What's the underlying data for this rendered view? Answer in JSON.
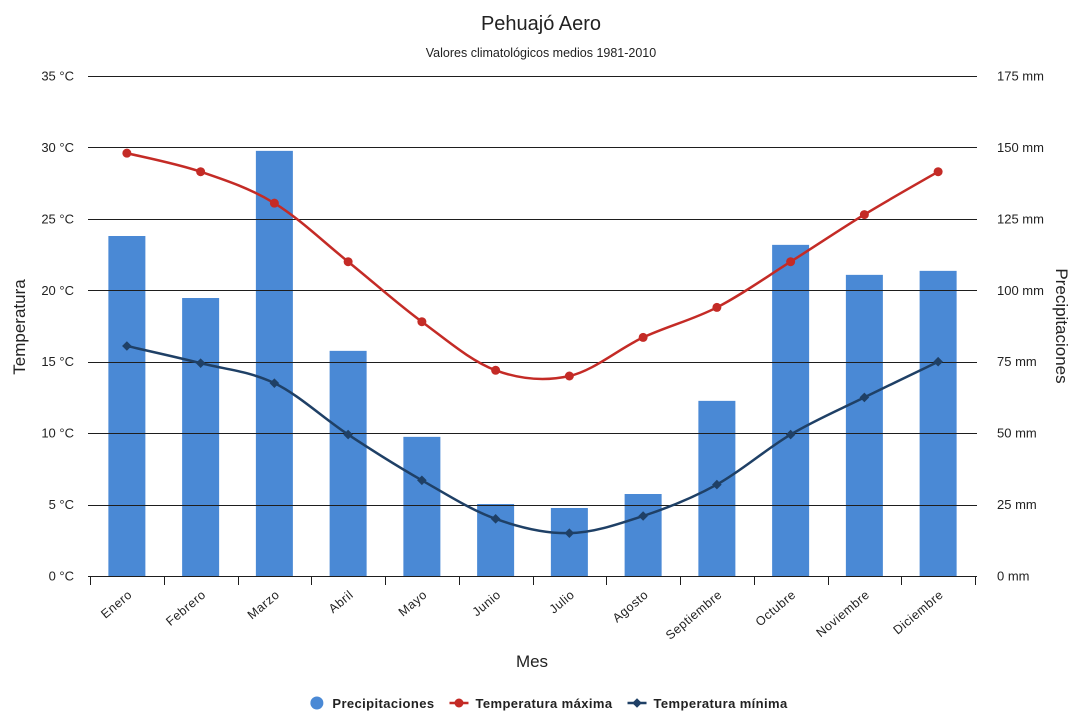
{
  "chart_data": {
    "type": "bar",
    "title": "Pehuajó Aero",
    "subtitle": "Valores climatológicos medios 1981-2010",
    "xlabel": "Mes",
    "ylabel": "Temperatura",
    "y2label": "Precipitaciones",
    "categories": [
      "Enero",
      "Febrero",
      "Marzo",
      "Abril",
      "Mayo",
      "Junio",
      "Julio",
      "Agosto",
      "Septiembre",
      "Octubre",
      "Noviembre",
      "Diciembre"
    ],
    "ylim": [
      0,
      35
    ],
    "y_ticks": [
      0,
      5,
      10,
      15,
      20,
      25,
      30,
      35
    ],
    "y_tick_labels": [
      "0 °C",
      "5 °C",
      "10 °C",
      "15 °C",
      "20 °C",
      "25 °C",
      "30 °C",
      "35 °C"
    ],
    "y2lim": [
      0,
      175
    ],
    "y2_ticks": [
      0,
      25,
      50,
      75,
      100,
      125,
      150,
      175
    ],
    "y2_tick_labels": [
      "0 mm",
      "25 mm",
      "50 mm",
      "75 mm",
      "100 mm",
      "125 mm",
      "150 mm",
      "175 mm"
    ],
    "grid": true,
    "legend_position": "bottom",
    "series": [
      {
        "name": "Precipitaciones",
        "type": "bar",
        "axis": "right",
        "color": "#4a89d5",
        "values": [
          119.0,
          97.3,
          148.8,
          78.8,
          48.7,
          25.2,
          23.8,
          28.7,
          61.3,
          115.9,
          105.4,
          106.8
        ]
      },
      {
        "name": "Temperatura máxima",
        "type": "line",
        "axis": "left",
        "color": "#c42b26",
        "marker": "circle",
        "values": [
          29.6,
          28.3,
          26.1,
          22.0,
          17.8,
          14.4,
          14.0,
          16.7,
          18.8,
          22.0,
          25.3,
          28.3
        ]
      },
      {
        "name": "Temperatura mínima",
        "type": "line",
        "axis": "left",
        "color": "#1f4066",
        "marker": "diamond",
        "values": [
          16.1,
          14.9,
          13.5,
          9.9,
          6.7,
          4.0,
          3.0,
          4.2,
          6.4,
          9.9,
          12.5,
          15.0
        ]
      }
    ]
  }
}
